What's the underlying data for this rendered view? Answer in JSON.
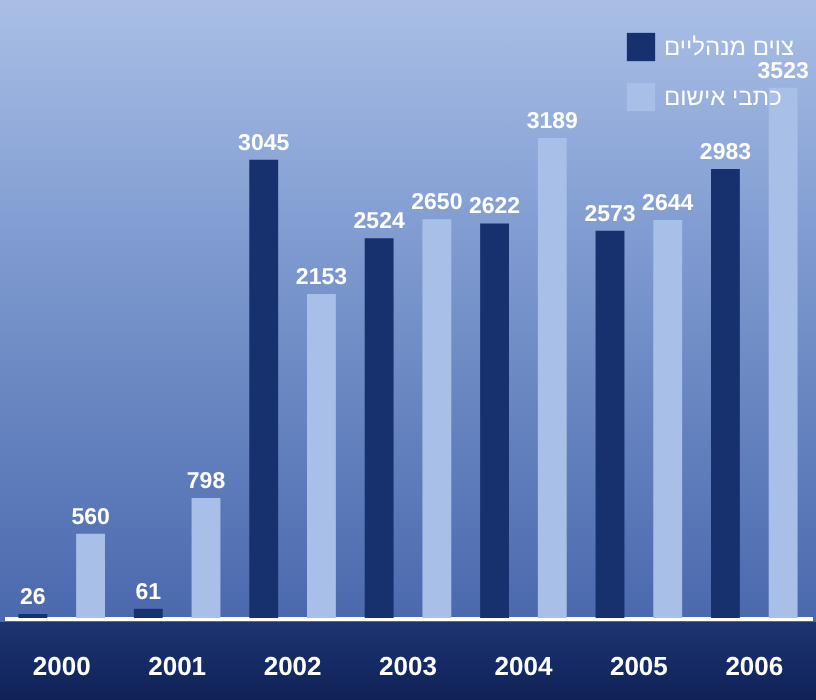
{
  "chart_data": {
    "type": "bar",
    "categories": [
      "2000",
      "2001",
      "2002",
      "2003",
      "2004",
      "2005",
      "2006"
    ],
    "series": [
      {
        "name": "צוים מנהליים",
        "color": "#17306e",
        "values": [
          26,
          61,
          3045,
          2524,
          2622,
          2573,
          2983
        ]
      },
      {
        "name": "כתבי אישום",
        "color": "#a8c0e8",
        "values": [
          560,
          798,
          2153,
          2650,
          3189,
          2644,
          3523
        ]
      }
    ],
    "data_labels": true,
    "legend": "top right",
    "grid": false
  }
}
